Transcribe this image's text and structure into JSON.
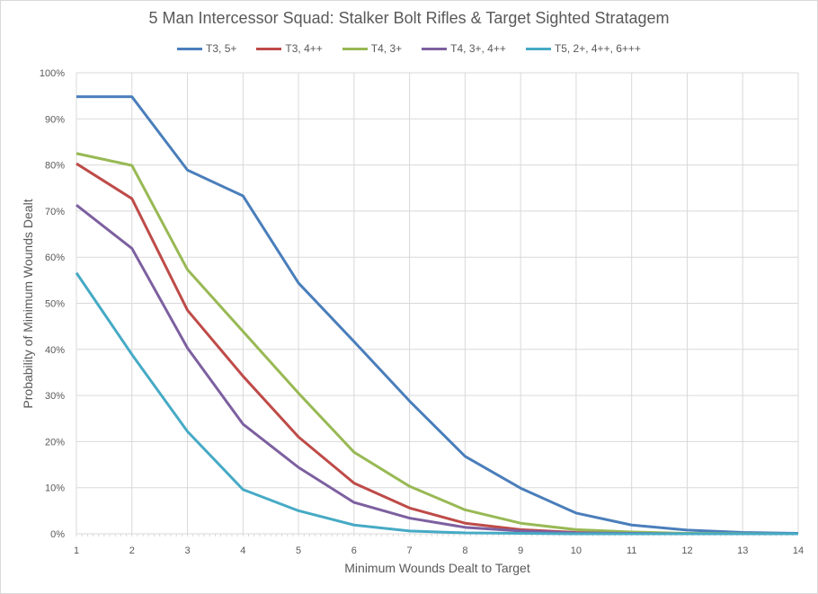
{
  "chart_data": {
    "type": "line",
    "title": "5 Man Intercessor Squad: Stalker Bolt Rifles & Target Sighted Stratagem",
    "xlabel": "Minimum Wounds Dealt  to Target",
    "ylabel": "Probability of Minimum Wounds Dealt",
    "x": [
      1,
      2,
      3,
      4,
      5,
      6,
      7,
      8,
      9,
      10,
      11,
      12,
      13,
      14
    ],
    "ylim": [
      0,
      100
    ],
    "yticks": [
      "0%",
      "10%",
      "20%",
      "30%",
      "40%",
      "50%",
      "60%",
      "70%",
      "80%",
      "90%",
      "100%"
    ],
    "grid": true,
    "legend_position": "top",
    "series": [
      {
        "name": "T3, 5+",
        "color": "#4a7ebb",
        "values": [
          94.8,
          94.8,
          78.9,
          73.3,
          54.4,
          41.7,
          28.8,
          16.8,
          9.9,
          4.5,
          1.9,
          0.8,
          0.3,
          0.1
        ]
      },
      {
        "name": "T3, 4++",
        "color": "#be4b48",
        "values": [
          80.3,
          72.7,
          48.5,
          34.2,
          21.0,
          11.0,
          5.6,
          2.3,
          0.9,
          0.3,
          0.1,
          0,
          0,
          0
        ]
      },
      {
        "name": "T4, 3+",
        "color": "#98b954",
        "values": [
          82.5,
          79.9,
          57.3,
          43.9,
          30.5,
          17.7,
          10.3,
          5.2,
          2.3,
          0.9,
          0.4,
          0.1,
          0.05,
          0
        ]
      },
      {
        "name": "T4, 3+, 4++",
        "color": "#7d60a0",
        "values": [
          71.3,
          61.9,
          40.3,
          23.8,
          14.4,
          6.8,
          3.4,
          1.4,
          0.6,
          0.2,
          0.1,
          0,
          0,
          0
        ]
      },
      {
        "name": "T5, 2+, 4++, 6+++",
        "color": "#46aac5",
        "values": [
          56.6,
          38.9,
          22.2,
          9.6,
          5.0,
          1.9,
          0.6,
          0.2,
          0.1,
          0,
          0,
          0,
          0,
          0
        ]
      }
    ]
  }
}
